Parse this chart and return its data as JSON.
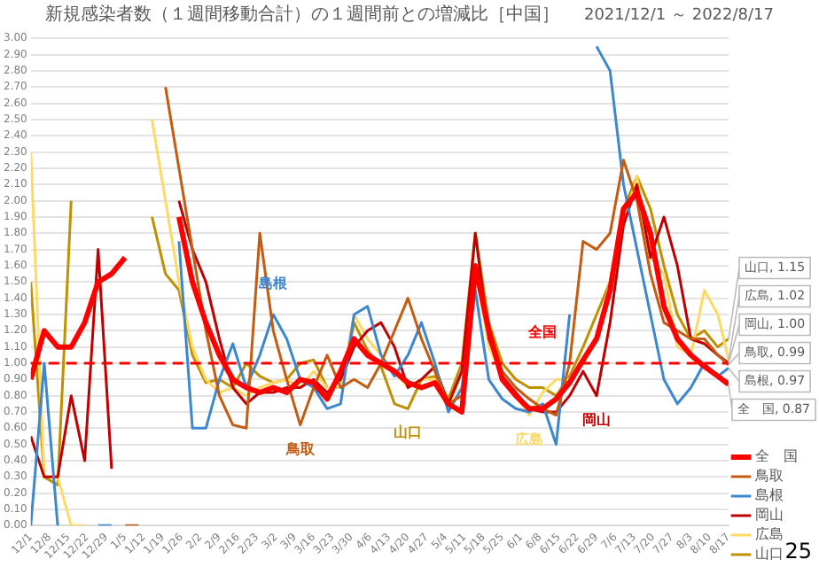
{
  "chart_data": {
    "type": "line",
    "title": "新規感染者数（１週間移動合計）の１週間前との増減比［中国］",
    "subtitle": "2021/12/1 ～ 2022/8/17",
    "x": [
      "2021-12-01",
      "2021-12-06",
      "2021-12-11",
      "2021-12-16",
      "2021-12-21",
      "2021-12-26",
      "2021-12-31",
      "2022-01-05",
      "2022-01-10",
      "2022-01-15",
      "2022-01-20",
      "2022-01-25",
      "2022-01-30",
      "2022-02-04",
      "2022-02-09",
      "2022-02-14",
      "2022-02-19",
      "2022-02-24",
      "2022-03-01",
      "2022-03-06",
      "2022-03-11",
      "2022-03-16",
      "2022-03-21",
      "2022-03-26",
      "2022-03-31",
      "2022-04-05",
      "2022-04-10",
      "2022-04-15",
      "2022-04-20",
      "2022-04-25",
      "2022-04-30",
      "2022-05-05",
      "2022-05-10",
      "2022-05-15",
      "2022-05-20",
      "2022-05-25",
      "2022-05-30",
      "2022-06-04",
      "2022-06-09",
      "2022-06-14",
      "2022-06-19",
      "2022-06-24",
      "2022-06-29",
      "2022-07-04",
      "2022-07-09",
      "2022-07-14",
      "2022-07-19",
      "2022-07-24",
      "2022-07-29",
      "2022-08-03",
      "2022-08-08",
      "2022-08-13",
      "2022-08-17"
    ],
    "series": [
      {
        "name": "全　国",
        "color": "#ff0000",
        "values": [
          0.9,
          1.2,
          1.1,
          1.1,
          1.25,
          1.5,
          1.55,
          1.65,
          null,
          null,
          null,
          1.9,
          1.5,
          1.25,
          1.05,
          0.9,
          0.85,
          0.82,
          0.85,
          0.82,
          0.9,
          0.88,
          0.78,
          0.95,
          1.15,
          1.05,
          1.0,
          0.95,
          0.88,
          0.85,
          0.88,
          0.75,
          0.7,
          1.6,
          1.2,
          0.9,
          0.8,
          0.72,
          0.72,
          0.78,
          0.88,
          1.02,
          1.15,
          1.45,
          1.95,
          2.05,
          1.8,
          1.35,
          1.15,
          1.05,
          0.98,
          0.92,
          0.87
        ]
      },
      {
        "name": "鳥取",
        "color": "#c55a11",
        "values": [
          null,
          null,
          null,
          null,
          null,
          null,
          null,
          0,
          0,
          null,
          2.7,
          2.2,
          1.7,
          1.2,
          0.8,
          0.62,
          0.6,
          1.8,
          1.2,
          0.9,
          0.62,
          0.85,
          1.05,
          0.85,
          0.9,
          0.85,
          1.0,
          1.2,
          1.4,
          1.15,
          0.95,
          0.75,
          0.8,
          1.6,
          1.2,
          0.95,
          0.85,
          0.78,
          0.72,
          0.68,
          1.0,
          1.75,
          1.7,
          1.8,
          2.25,
          2.0,
          1.55,
          1.25,
          1.2,
          1.15,
          1.15,
          1.05,
          0.99
        ]
      },
      {
        "name": "島根",
        "color": "#3c87d0",
        "values": [
          0,
          1.0,
          0,
          null,
          null,
          0,
          0,
          null,
          null,
          null,
          null,
          1.75,
          0.6,
          0.6,
          0.9,
          1.12,
          0.85,
          1.05,
          1.3,
          1.15,
          0.9,
          0.85,
          0.72,
          0.75,
          1.3,
          1.35,
          1.05,
          0.92,
          1.05,
          1.25,
          1.0,
          0.7,
          0.85,
          1.45,
          0.9,
          0.78,
          0.72,
          0.7,
          0.75,
          0.5,
          1.3,
          null,
          2.95,
          2.8,
          2.1,
          1.7,
          1.3,
          0.9,
          0.75,
          0.85,
          1.0,
          0.92,
          0.97
        ]
      },
      {
        "name": "岡山",
        "color": "#c00000",
        "values": [
          0.55,
          0.3,
          0.3,
          0.8,
          0.4,
          1.7,
          0.35,
          null,
          null,
          null,
          null,
          2.0,
          1.7,
          1.5,
          1.15,
          0.85,
          0.75,
          0.82,
          0.82,
          0.85,
          0.85,
          0.9,
          0.82,
          0.9,
          1.1,
          1.2,
          1.25,
          1.1,
          0.85,
          0.9,
          0.98,
          0.75,
          0.95,
          1.8,
          1.15,
          0.92,
          0.82,
          0.72,
          0.7,
          0.7,
          0.8,
          0.95,
          0.8,
          1.25,
          1.85,
          2.1,
          1.65,
          1.9,
          1.6,
          1.15,
          1.12,
          1.05,
          1.0
        ]
      },
      {
        "name": "広島",
        "color": "#ffd966",
        "values": [
          2.3,
          0.3,
          0.3,
          0,
          0,
          null,
          null,
          null,
          null,
          2.5,
          2.0,
          1.5,
          1.1,
          0.9,
          0.82,
          0.85,
          0.8,
          0.85,
          0.88,
          0.9,
          0.85,
          0.95,
          0.85,
          0.85,
          1.3,
          1.15,
          1.05,
          0.95,
          0.85,
          0.9,
          0.9,
          0.72,
          0.95,
          1.6,
          1.1,
          0.92,
          0.8,
          0.68,
          0.82,
          0.9,
          0.9,
          1.0,
          1.15,
          1.5,
          1.85,
          2.15,
          1.65,
          1.55,
          1.1,
          1.05,
          1.45,
          1.3,
          1.02
        ]
      },
      {
        "name": "山口",
        "color": "#bf9000",
        "values": [
          1.5,
          0.3,
          0.25,
          2.0,
          null,
          null,
          null,
          null,
          null,
          1.9,
          1.55,
          1.45,
          1.05,
          0.88,
          0.9,
          0.85,
          1.0,
          0.92,
          0.88,
          0.9,
          1.0,
          1.02,
          0.85,
          0.85,
          1.25,
          1.08,
          0.98,
          0.75,
          0.72,
          0.9,
          0.92,
          0.78,
          1.0,
          1.8,
          1.25,
          1.0,
          0.9,
          0.85,
          0.85,
          0.8,
          0.92,
          1.1,
          1.3,
          1.5,
          1.95,
          2.15,
          1.95,
          1.6,
          1.3,
          1.15,
          1.2,
          1.1,
          1.15
        ]
      }
    ],
    "xlim": [
      "2021-12-01",
      "2022-08-17"
    ],
    "xticks": [
      {
        "value": "2021-12-01",
        "label": "12/1"
      },
      {
        "value": "2021-12-08",
        "label": "12/8"
      },
      {
        "value": "2021-12-15",
        "label": "12/15"
      },
      {
        "value": "2021-12-22",
        "label": "12/22"
      },
      {
        "value": "2021-12-29",
        "label": "12/29"
      },
      {
        "value": "2022-01-05",
        "label": "1/5"
      },
      {
        "value": "2022-01-12",
        "label": "1/12"
      },
      {
        "value": "2022-01-19",
        "label": "1/19"
      },
      {
        "value": "2022-01-26",
        "label": "1/26"
      },
      {
        "value": "2022-02-02",
        "label": "2/2"
      },
      {
        "value": "2022-02-09",
        "label": "2/9"
      },
      {
        "value": "2022-02-16",
        "label": "2/16"
      },
      {
        "value": "2022-02-23",
        "label": "2/23"
      },
      {
        "value": "2022-03-02",
        "label": "3/2"
      },
      {
        "value": "2022-03-09",
        "label": "3/9"
      },
      {
        "value": "2022-03-16",
        "label": "3/16"
      },
      {
        "value": "2022-03-23",
        "label": "3/23"
      },
      {
        "value": "2022-03-30",
        "label": "3/30"
      },
      {
        "value": "2022-04-06",
        "label": "4/6"
      },
      {
        "value": "2022-04-13",
        "label": "4/13"
      },
      {
        "value": "2022-04-20",
        "label": "4/20"
      },
      {
        "value": "2022-04-27",
        "label": "4/27"
      },
      {
        "value": "2022-05-04",
        "label": "5/4"
      },
      {
        "value": "2022-05-11",
        "label": "5/11"
      },
      {
        "value": "2022-05-18",
        "label": "5/18"
      },
      {
        "value": "2022-05-25",
        "label": "5/25"
      },
      {
        "value": "2022-06-01",
        "label": "6/1"
      },
      {
        "value": "2022-06-08",
        "label": "6/8"
      },
      {
        "value": "2022-06-15",
        "label": "6/15"
      },
      {
        "value": "2022-06-22",
        "label": "6/22"
      },
      {
        "value": "2022-06-29",
        "label": "6/29"
      },
      {
        "value": "2022-07-06",
        "label": "7/6"
      },
      {
        "value": "2022-07-13",
        "label": "7/13"
      },
      {
        "value": "2022-07-20",
        "label": "7/20"
      },
      {
        "value": "2022-07-27",
        "label": "7/27"
      },
      {
        "value": "2022-08-03",
        "label": "8/3"
      },
      {
        "value": "2022-08-10",
        "label": "8/10"
      },
      {
        "value": "2022-08-17",
        "label": "8/17"
      }
    ],
    "ylim": [
      0,
      3
    ],
    "yticks": [
      {
        "value": 0,
        "label": "0.00"
      },
      {
        "value": 0.1,
        "label": "0.10"
      },
      {
        "value": 0.2,
        "label": "0.20"
      },
      {
        "value": 0.3,
        "label": "0.30"
      },
      {
        "value": 0.4,
        "label": "0.40"
      },
      {
        "value": 0.5,
        "label": "0.50"
      },
      {
        "value": 0.6,
        "label": "0.60"
      },
      {
        "value": 0.7,
        "label": "0.70"
      },
      {
        "value": 0.8,
        "label": "0.80"
      },
      {
        "value": 0.9,
        "label": "0.90"
      },
      {
        "value": 1,
        "label": "1.00"
      },
      {
        "value": 1.1,
        "label": "1.10"
      },
      {
        "value": 1.2,
        "label": "1.20"
      },
      {
        "value": 1.3,
        "label": "1.30"
      },
      {
        "value": 1.4,
        "label": "1.40"
      },
      {
        "value": 1.5,
        "label": "1.50"
      },
      {
        "value": 1.6,
        "label": "1.60"
      },
      {
        "value": 1.7,
        "label": "1.70"
      },
      {
        "value": 1.8,
        "label": "1.80"
      },
      {
        "value": 1.9,
        "label": "1.90"
      },
      {
        "value": 2,
        "label": "2.00"
      },
      {
        "value": 2.1,
        "label": "2.10"
      },
      {
        "value": 2.2,
        "label": "2.20"
      },
      {
        "value": 2.3,
        "label": "2.30"
      },
      {
        "value": 2.4,
        "label": "2.40"
      },
      {
        "value": 2.5,
        "label": "2.50"
      },
      {
        "value": 2.6,
        "label": "2.60"
      },
      {
        "value": 2.7,
        "label": "2.70"
      },
      {
        "value": 2.8,
        "label": "2.80"
      },
      {
        "value": 2.9,
        "label": "2.90"
      },
      {
        "value": 3,
        "label": "3.00"
      }
    ],
    "ref_lines": [
      {
        "axis": "y",
        "value": 1,
        "color": "#ff0000",
        "line_style": "dashed"
      }
    ],
    "annotations": [
      {
        "text": "山口, 1.15",
        "x": "2022-08-17",
        "y": 1.15
      },
      {
        "text": "広島, 1.02",
        "x": "2022-08-17",
        "y": 1.02
      },
      {
        "text": "岡山, 1.00",
        "x": "2022-08-17",
        "y": 1.0
      },
      {
        "text": "鳥取, 0.99",
        "x": "2022-08-17",
        "y": 0.99
      },
      {
        "text": "島根, 0.97",
        "x": "2022-08-17",
        "y": 0.97
      },
      {
        "text": "全　国, 0.87",
        "x": "2022-08-17",
        "y": 0.87
      },
      {
        "text": "島根",
        "x": "2022-03-01",
        "y": 1.3
      },
      {
        "text": "鳥取",
        "x": "2022-03-11",
        "y": 0.62
      },
      {
        "text": "山口",
        "x": "2022-04-20",
        "y": 0.72
      },
      {
        "text": "広島",
        "x": "2022-06-04",
        "y": 0.68
      },
      {
        "text": "全国",
        "x": "2022-06-09",
        "y": 1
      },
      {
        "text": "岡山",
        "x": "2022-06-29",
        "y": 0.8
      },
      "25"
    ],
    "grid": "y",
    "legend": "bottom right",
    "marker": "none",
    "line_style": "solid"
  }
}
